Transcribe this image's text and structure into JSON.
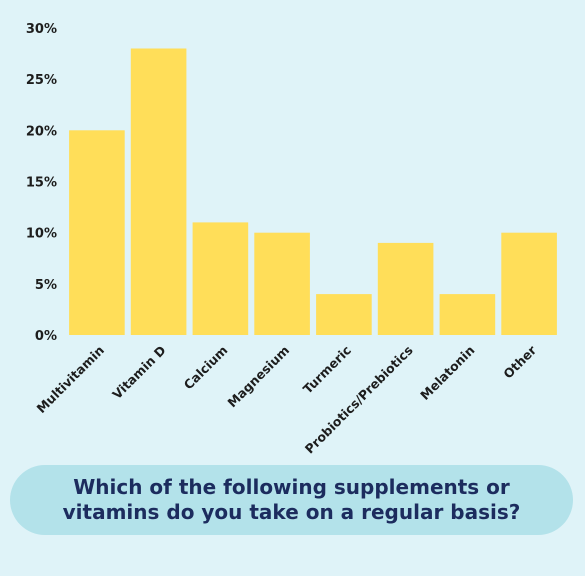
{
  "chart_data": {
    "type": "bar",
    "categories": [
      "Multivitamin",
      "Vitamin D",
      "Calcium",
      "Magnesium",
      "Turmeric",
      "Probiotics/Prebiotics",
      "Melatonin",
      "Other"
    ],
    "values": [
      20,
      28,
      11,
      10,
      4,
      9,
      4,
      10
    ],
    "ylim": [
      0,
      30
    ],
    "yticks": [
      0,
      5,
      10,
      15,
      20,
      25,
      30
    ],
    "ytick_labels": [
      "0%",
      "5%",
      "10%",
      "15%",
      "20%",
      "25%",
      "30%"
    ],
    "grid": false,
    "bar_color": "#ffde59",
    "xlabel": "",
    "ylabel": ""
  },
  "question": "Which of the following supplements or vitamins do you take on a regular basis?",
  "colors": {
    "background": "#dff3f8",
    "question_box": "#b3e2ea",
    "question_text": "#1c2c5e"
  }
}
